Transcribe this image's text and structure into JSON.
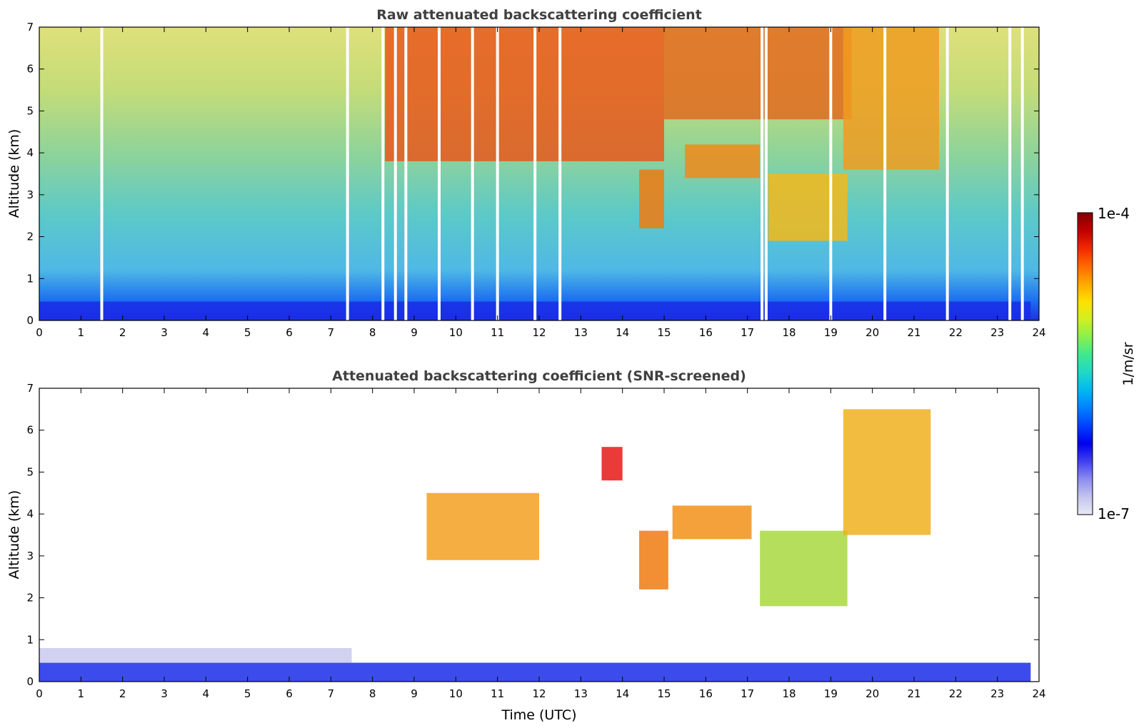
{
  "chart_data": [
    {
      "type": "heatmap",
      "title": "Raw attenuated backscattering coefficient",
      "xlabel": "",
      "ylabel": "Altitude (km)",
      "xlim": [
        0,
        24
      ],
      "ylim": [
        0,
        7
      ],
      "x_ticks": [
        "0",
        "1",
        "2",
        "3",
        "4",
        "5",
        "6",
        "7",
        "8",
        "9",
        "10",
        "11",
        "12",
        "13",
        "14",
        "15",
        "16",
        "17",
        "18",
        "19",
        "20",
        "21",
        "22",
        "23",
        "24"
      ],
      "y_ticks": [
        "0",
        "1",
        "2",
        "3",
        "4",
        "5",
        "6",
        "7"
      ],
      "grid": false,
      "background_profile": [
        {
          "alt": 0.0,
          "color": "#1e2fe0"
        },
        {
          "alt": 0.45,
          "color": "#1a6cf0"
        },
        {
          "alt": 1.2,
          "color": "#4fb8e6"
        },
        {
          "alt": 2.5,
          "color": "#5cc9c8"
        },
        {
          "alt": 4.0,
          "color": "#8fd39a"
        },
        {
          "alt": 5.5,
          "color": "#c4dc78"
        },
        {
          "alt": 7.0,
          "color": "#dfe07a"
        }
      ],
      "features": [
        {
          "name": "aerosol layer",
          "t_start": 0.0,
          "t_end": 23.8,
          "alt_base": 0.0,
          "alt_top": 0.45,
          "color": "#1a2de8"
        },
        {
          "name": "high cloud",
          "t_start": 8.3,
          "t_end": 15.0,
          "alt_base": 3.8,
          "alt_top": 7.0,
          "color": "#e8581c"
        },
        {
          "name": "high cloud",
          "t_start": 15.0,
          "t_end": 19.5,
          "alt_base": 4.8,
          "alt_top": 7.0,
          "color": "#e06a1e"
        },
        {
          "name": "cloud",
          "t_start": 15.5,
          "t_end": 17.3,
          "alt_base": 3.4,
          "alt_top": 4.2,
          "color": "#f08a1a"
        },
        {
          "name": "virga",
          "t_start": 14.4,
          "t_end": 15.0,
          "alt_base": 2.2,
          "alt_top": 3.6,
          "color": "#f07a10"
        },
        {
          "name": "cloud",
          "t_start": 17.5,
          "t_end": 19.4,
          "alt_base": 1.9,
          "alt_top": 3.5,
          "color": "#f5b81a"
        },
        {
          "name": "ascending cloud",
          "t_start": 19.3,
          "t_end": 21.6,
          "alt_base": 3.6,
          "alt_top": 7.0,
          "color": "#f09c20"
        }
      ],
      "data_gaps": [
        1.5,
        7.4,
        8.25,
        8.55,
        8.8,
        9.6,
        10.4,
        11.0,
        11.9,
        12.5,
        17.35,
        17.45,
        19.0,
        20.3,
        21.8,
        23.3,
        23.6
      ]
    },
    {
      "type": "heatmap",
      "title": "Attenuated backscattering coefficient (SNR-screened)",
      "xlabel": "Time (UTC)",
      "ylabel": "Altitude (km)",
      "xlim": [
        0,
        24
      ],
      "ylim": [
        0,
        7
      ],
      "x_ticks": [
        "0",
        "1",
        "2",
        "3",
        "4",
        "5",
        "6",
        "7",
        "8",
        "9",
        "10",
        "11",
        "12",
        "13",
        "14",
        "15",
        "16",
        "17",
        "18",
        "19",
        "20",
        "21",
        "22",
        "23",
        "24"
      ],
      "y_ticks": [
        "0",
        "1",
        "2",
        "3",
        "4",
        "5",
        "6",
        "7"
      ],
      "grid": false,
      "features": [
        {
          "name": "aerosol layer",
          "t_start": 0.0,
          "t_end": 23.8,
          "alt_base": 0.0,
          "alt_top": 0.45,
          "color": "#1a2de8"
        },
        {
          "name": "residual layer",
          "t_start": 0.0,
          "t_end": 7.5,
          "alt_base": 0.45,
          "alt_top": 0.8,
          "color": "#c9c9f0"
        },
        {
          "name": "cloud streaks",
          "t_start": 9.3,
          "t_end": 12.0,
          "alt_base": 2.9,
          "alt_top": 4.5,
          "color": "#f2a020"
        },
        {
          "name": "virga",
          "t_start": 14.4,
          "t_end": 15.1,
          "alt_base": 2.2,
          "alt_top": 3.6,
          "color": "#f07a10"
        },
        {
          "name": "cloud",
          "t_start": 15.2,
          "t_end": 17.1,
          "alt_base": 3.4,
          "alt_top": 4.2,
          "color": "#f2901a"
        },
        {
          "name": "cloud",
          "t_start": 17.3,
          "t_end": 19.4,
          "alt_base": 1.8,
          "alt_top": 3.6,
          "color": "#a8d840"
        },
        {
          "name": "ascending cloud",
          "t_start": 19.3,
          "t_end": 21.4,
          "alt_base": 3.5,
          "alt_top": 6.5,
          "color": "#f0b020"
        },
        {
          "name": "isolated echo",
          "t_start": 13.5,
          "t_end": 14.0,
          "alt_base": 4.8,
          "alt_top": 5.6,
          "color": "#e81818"
        }
      ]
    }
  ],
  "colorbar": {
    "label": "1/m/sr",
    "max_label": "1e-4",
    "min_label": "1e-7",
    "scale": "log",
    "colors": [
      "#e8e8f4",
      "#c4c4f0",
      "#8c8cf0",
      "#4040f0",
      "#0000ee",
      "#0040ff",
      "#0080ff",
      "#00b8f0",
      "#20d8c8",
      "#40e890",
      "#88f050",
      "#d0f020",
      "#ffe000",
      "#ffa800",
      "#ff6800",
      "#f02800",
      "#c00000",
      "#800000"
    ]
  }
}
